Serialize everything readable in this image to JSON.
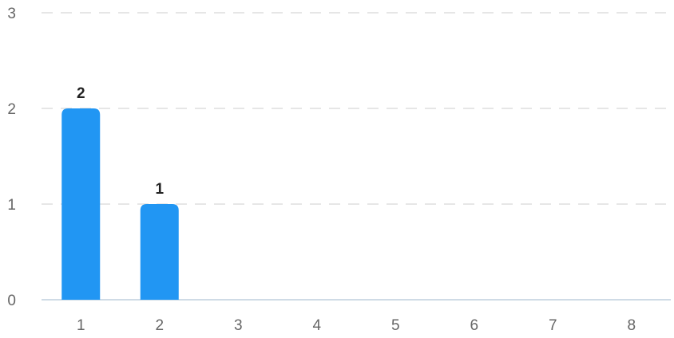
{
  "chart_data": {
    "type": "bar",
    "categories": [
      "1",
      "2",
      "3",
      "4",
      "5",
      "6",
      "7",
      "8"
    ],
    "values": [
      2,
      1,
      0,
      0,
      0,
      0,
      0,
      0
    ],
    "data_labels": [
      "2",
      "1",
      "",
      "",
      "",
      "",
      "",
      ""
    ],
    "y_ticks": [
      "0",
      "1",
      "2",
      "3"
    ],
    "ylim": [
      0,
      3
    ],
    "grid": true,
    "legend": "none",
    "bar_color": "#2196f3",
    "title": "",
    "xlabel": "",
    "ylabel": ""
  }
}
